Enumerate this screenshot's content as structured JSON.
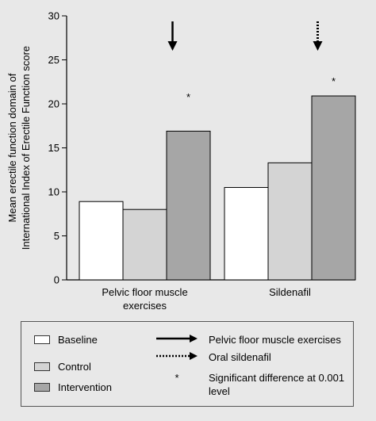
{
  "chart_data": {
    "type": "bar",
    "ylabel_line1": "Mean erectile function domain of",
    "ylabel_line2": "International Index of Erectile Function score",
    "ylim": [
      0,
      30
    ],
    "yticks": [
      "0",
      "5",
      "10",
      "15",
      "20",
      "25",
      "30"
    ],
    "categories": [
      {
        "lines": [
          "Pelvic floor muscle",
          "exercises"
        ]
      },
      {
        "lines": [
          "Sildenafil"
        ]
      }
    ],
    "series": [
      {
        "name": "Baseline",
        "color": "#ffffff",
        "values": [
          8.9,
          10.5
        ]
      },
      {
        "name": "Control",
        "color": "#d4d4d4",
        "values": [
          8.0,
          13.3
        ]
      },
      {
        "name": "Intervention",
        "color": "#a6a6a6",
        "values": [
          16.9,
          20.9
        ]
      }
    ],
    "annotations": {
      "star": "*",
      "star_values": [
        21.0,
        22.8
      ]
    },
    "arrows": [
      {
        "category": 0,
        "style": "solid"
      },
      {
        "category": 1,
        "style": "dotted"
      }
    ]
  },
  "legend": {
    "items": [
      {
        "label": "Baseline",
        "color": "#ffffff"
      },
      {
        "label": "Control",
        "color": "#d4d4d4"
      },
      {
        "label": "Intervention",
        "color": "#a6a6a6"
      }
    ],
    "symbols": [
      {
        "kind": "solid-arrow",
        "label": "Pelvic floor muscle exercises"
      },
      {
        "kind": "dotted-arrow",
        "label": "Oral sildenafil"
      },
      {
        "kind": "star",
        "symbol": "*",
        "label": "Significant difference at 0.001 level"
      }
    ]
  }
}
